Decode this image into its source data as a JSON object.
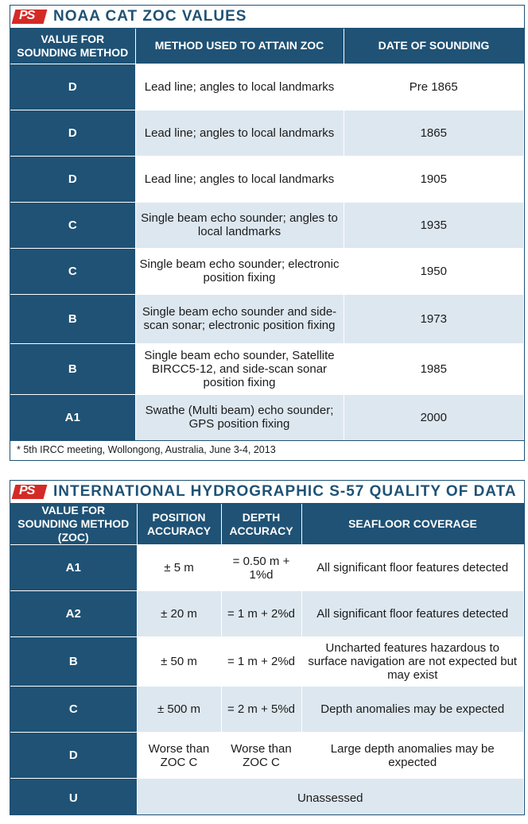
{
  "logo_text": "PS",
  "table1": {
    "title": "NOAA CAT ZOC VALUES",
    "headers": [
      "VALUE FOR SOUNDING METHOD",
      "METHOD USED TO ATTAIN ZOC",
      "DATE OF SOUNDING"
    ],
    "rows": [
      {
        "value": "D",
        "method": "Lead line; angles to local landmarks",
        "date": "Pre 1865"
      },
      {
        "value": "D",
        "method": "Lead line; angles to local landmarks",
        "date": "1865"
      },
      {
        "value": "D",
        "method": "Lead line; angles to local landmarks",
        "date": "1905"
      },
      {
        "value": "C",
        "method": "Single beam echo sounder; angles to local landmarks",
        "date": "1935"
      },
      {
        "value": "C",
        "method": "Single beam echo sounder; electronic position fixing",
        "date": "1950"
      },
      {
        "value": "B",
        "method": "Single beam echo sounder and side-scan sonar; electronic position fixing",
        "date": "1973"
      },
      {
        "value": "B",
        "method": "Single beam echo sounder, Satellite BIRCC5-12, and side-scan sonar position fixing",
        "date": "1985"
      },
      {
        "value": "A1",
        "method": "Swathe (Multi beam) echo sounder; GPS position fixing",
        "date": "2000"
      }
    ],
    "footnote": "* 5th IRCC meeting, Wollongong, Australia, June 3-4, 2013"
  },
  "table2": {
    "title": "INTERNATIONAL HYDROGRAPHIC S-57 QUALITY OF DATA",
    "headers": [
      "VALUE FOR SOUNDING METHOD (ZOC)",
      "POSITION ACCURACY",
      "DEPTH ACCURACY",
      "SEAFLOOR COVERAGE"
    ],
    "rows": [
      {
        "value": "A1",
        "position": "± 5 m",
        "depth": "= 0.50 m + 1%d",
        "coverage": "All significant floor features detected"
      },
      {
        "value": "A2",
        "position": "± 20 m",
        "depth": "= 1 m + 2%d",
        "coverage": "All significant floor features detected"
      },
      {
        "value": "B",
        "position": "± 50 m",
        "depth": "= 1 m + 2%d",
        "coverage": "Uncharted features hazardous to surface navigation are not expected but may exist"
      },
      {
        "value": "C",
        "position": "± 500 m",
        "depth": "= 2 m + 5%d",
        "coverage": "Depth anomalies may be expected"
      },
      {
        "value": "D",
        "position": "Worse than ZOC C",
        "depth": "Worse than ZOC C",
        "coverage": "Large depth anomalies may be expected"
      },
      {
        "value": "U",
        "merged": "Unassessed"
      }
    ]
  }
}
